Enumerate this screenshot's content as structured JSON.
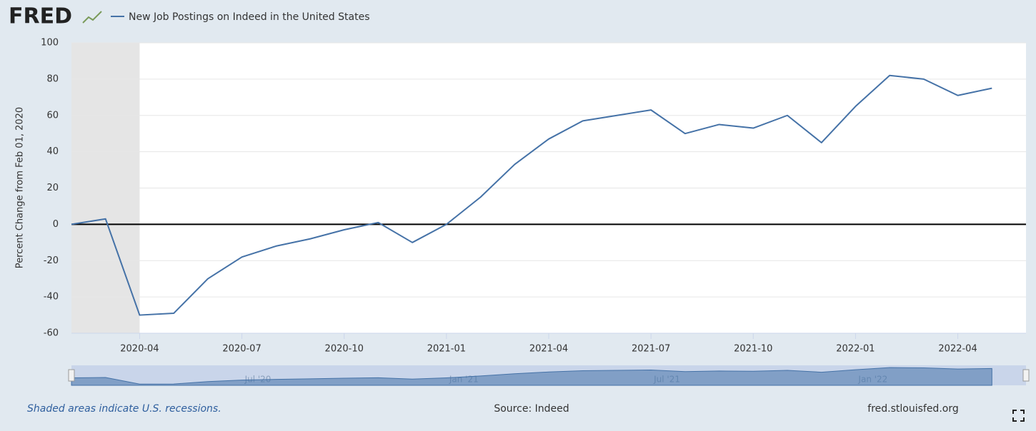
{
  "logo": "FRED",
  "footer": {
    "note": "Shaded areas indicate U.S. recessions.",
    "source": "Source: Indeed",
    "site": "fred.stlouisfed.org"
  },
  "chart_data": {
    "type": "line",
    "ylabel": "Percent Change from Feb 01, 2020",
    "x": [
      "2020-02",
      "2020-03",
      "2020-04",
      "2020-05",
      "2020-06",
      "2020-07",
      "2020-08",
      "2020-09",
      "2020-10",
      "2020-11",
      "2020-12",
      "2021-01",
      "2021-02",
      "2021-03",
      "2021-04",
      "2021-05",
      "2021-06",
      "2021-07",
      "2021-08",
      "2021-09",
      "2021-10",
      "2021-11",
      "2021-12",
      "2022-01",
      "2022-02",
      "2022-03",
      "2022-04",
      "2022-05"
    ],
    "series": [
      {
        "name": "New Job Postings on Indeed in the United States",
        "color": "#4572a7",
        "values": [
          0,
          3,
          -50,
          -49,
          -30,
          -18,
          -12,
          -8,
          -3,
          1,
          -10,
          0,
          15,
          33,
          47,
          57,
          60,
          63,
          50,
          55,
          53,
          60,
          45,
          65,
          82,
          80,
          71,
          75
        ]
      }
    ],
    "xlim": [
      "2020-02",
      "2022-06"
    ],
    "xticks": [
      "2020-04",
      "2020-07",
      "2020-10",
      "2021-01",
      "2021-04",
      "2021-07",
      "2021-10",
      "2022-01",
      "2022-04"
    ],
    "ylim": [
      -60,
      100
    ],
    "yticks": [
      -60,
      -40,
      -20,
      0,
      20,
      40,
      60,
      80,
      100
    ],
    "grid": true,
    "recession": [
      "2020-02",
      "2020-04"
    ],
    "navigator_ticks": [
      {
        "value": "2020-07",
        "label": "Jul '20"
      },
      {
        "value": "2021-01",
        "label": "Jan '21"
      },
      {
        "value": "2021-07",
        "label": "Jul '21"
      },
      {
        "value": "2022-01",
        "label": "Jan '22"
      }
    ]
  }
}
